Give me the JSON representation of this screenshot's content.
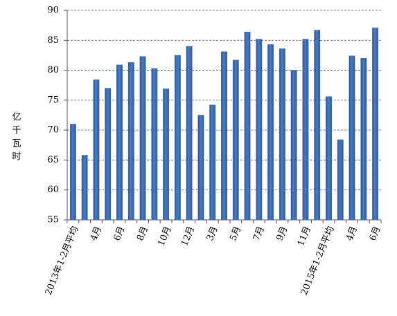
{
  "chart_data": {
    "type": "bar",
    "y_label": "亿千瓦时",
    "categories": [
      "2013年1-2月平均",
      null,
      "4月",
      null,
      "6月",
      null,
      "8月",
      null,
      "10月",
      null,
      "12月",
      null,
      "3月",
      null,
      "5月",
      null,
      "7月",
      null,
      "9月",
      null,
      "11月",
      null,
      "2015年1-2月平均",
      null,
      "4月",
      null,
      "6月"
    ],
    "values": [
      71,
      65.8,
      78.4,
      77,
      80.9,
      81.3,
      82.3,
      80.3,
      76.9,
      82.5,
      84,
      72.5,
      74.2,
      83.1,
      81.7,
      86.4,
      85.2,
      84.3,
      83.6,
      80,
      85.2,
      86.7,
      75.6,
      68.4,
      82.4,
      82,
      87.1
    ],
    "color": "#3e6db4",
    "ylim": [
      55,
      90
    ],
    "yticks": [
      55,
      60,
      65,
      70,
      75,
      80,
      85,
      90
    ],
    "grid": true
  }
}
